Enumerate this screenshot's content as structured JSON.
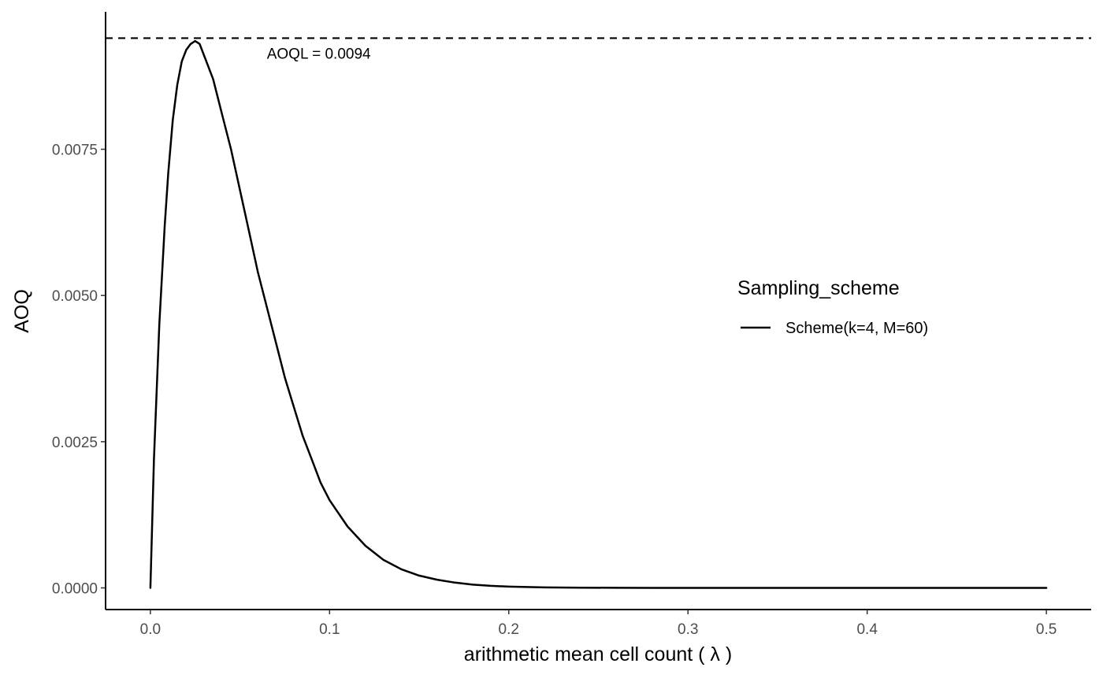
{
  "chart_data": {
    "type": "line",
    "xlabel": "arithmetic mean cell count ( λ )",
    "ylabel": "AOQ",
    "xlim": [
      -0.025,
      0.525
    ],
    "ylim": [
      -0.00037,
      0.00985
    ],
    "x_ticks": [
      0.0,
      0.1,
      0.2,
      0.3,
      0.4,
      0.5
    ],
    "x_tick_labels": [
      "0.0",
      "0.1",
      "0.2",
      "0.3",
      "0.4",
      "0.5"
    ],
    "y_ticks": [
      0.0,
      0.0025,
      0.005,
      0.0075
    ],
    "y_tick_labels": [
      "0.0000",
      "0.0025",
      "0.0050",
      "0.0075"
    ],
    "grid": false,
    "legend": {
      "title": "Sampling_scheme",
      "placement": "right",
      "entries": [
        "Scheme(k=4, M=60)"
      ]
    },
    "series": [
      {
        "name": "Scheme(k=4, M=60)",
        "color": "#000000",
        "x": [
          0.0,
          0.002,
          0.005,
          0.008,
          0.01,
          0.0125,
          0.015,
          0.0175,
          0.02,
          0.0225,
          0.025,
          0.0275,
          0.03,
          0.035,
          0.04,
          0.045,
          0.05,
          0.055,
          0.06,
          0.065,
          0.07,
          0.075,
          0.08,
          0.085,
          0.09,
          0.095,
          0.1,
          0.11,
          0.12,
          0.13,
          0.14,
          0.15,
          0.16,
          0.17,
          0.18,
          0.19,
          0.2,
          0.22,
          0.24,
          0.26,
          0.28,
          0.3,
          0.35,
          0.4,
          0.45,
          0.5
        ],
        "y": [
          0.0,
          0.0022,
          0.0045,
          0.0062,
          0.0071,
          0.008,
          0.0086,
          0.009,
          0.0092,
          0.0093,
          0.00935,
          0.0093,
          0.0091,
          0.0087,
          0.0081,
          0.0075,
          0.0068,
          0.0061,
          0.0054,
          0.0048,
          0.0042,
          0.0036,
          0.0031,
          0.0026,
          0.0022,
          0.0018,
          0.0015,
          0.00105,
          0.00072,
          0.00048,
          0.00032,
          0.00021,
          0.00014,
          9e-05,
          5.5e-05,
          3.5e-05,
          2.2e-05,
          9e-06,
          4e-06,
          1.5e-06,
          6e-07,
          2e-07,
          0.0,
          0.0,
          0.0,
          0.0
        ]
      }
    ],
    "annotations": [
      {
        "type": "hline",
        "y": 0.0094,
        "style": "dashed",
        "color": "#000000"
      },
      {
        "type": "text",
        "label": "AOQL = 0.0094",
        "x": 0.094,
        "y": 0.0094
      }
    ]
  }
}
